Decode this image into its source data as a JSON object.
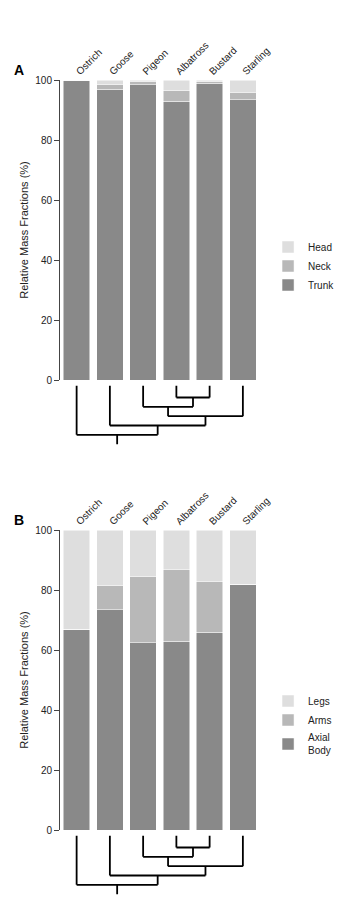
{
  "chart_data": [
    {
      "type": "bar",
      "title": "A",
      "stacked": true,
      "grid": false,
      "legend": "right",
      "categories": [
        "Ostrich",
        "Goose",
        "Pigeon",
        "Albatross",
        "Bustard",
        "Starling"
      ],
      "series": [
        {
          "name": "Trunk",
          "color": "#898989",
          "values": [
            100.0,
            97.0,
            98.5,
            93.0,
            99.0,
            93.5
          ]
        },
        {
          "name": "Neck",
          "color": "#b8b8b8",
          "values": [
            0.0,
            1.5,
            1.0,
            3.5,
            0.5,
            2.5
          ]
        },
        {
          "name": "Head",
          "color": "#dedede",
          "values": [
            0.0,
            1.5,
            0.5,
            3.5,
            0.5,
            4.0
          ]
        }
      ],
      "y_label": "Relative Mass Fractions (%)",
      "ylim": [
        0,
        100
      ],
      "yticks": [
        0,
        20,
        40,
        60,
        80,
        100
      ]
    },
    {
      "type": "bar",
      "title": "B",
      "stacked": true,
      "grid": false,
      "legend": "right",
      "categories": [
        "Ostrich",
        "Goose",
        "Pigeon",
        "Albatross",
        "Bustard",
        "Starling"
      ],
      "series": [
        {
          "name": "Axial\nBody",
          "color": "#898989",
          "values": [
            67.0,
            73.5,
            62.5,
            63.0,
            66.0,
            82.0
          ]
        },
        {
          "name": "Arms",
          "color": "#b8b8b8",
          "values": [
            0.0,
            8.0,
            22.0,
            24.0,
            17.0,
            0.0
          ]
        },
        {
          "name": "Legs",
          "color": "#dedede",
          "values": [
            33.0,
            18.5,
            15.5,
            13.0,
            17.0,
            18.0
          ]
        }
      ],
      "y_label": "Relative Mass Fractions (%)",
      "ylim": [
        0,
        100
      ],
      "yticks": [
        0,
        20,
        40,
        60,
        80,
        100
      ]
    }
  ]
}
